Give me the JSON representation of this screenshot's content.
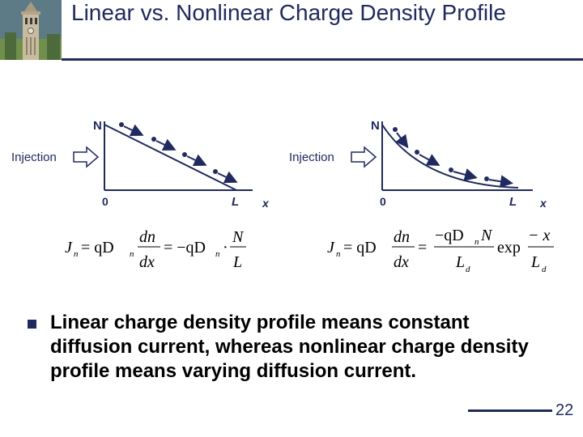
{
  "slide": {
    "title": "Linear vs. Nonlinear Charge Density Profile",
    "bullet": "Linear charge density profile means constant diffusion current, whereas nonlinear charge density profile means varying diffusion current.",
    "page_number": "22",
    "colors": {
      "accent": "#1f2a63"
    }
  },
  "diagram_left": {
    "y_label": "N",
    "x_label": "x",
    "origin_label": "0",
    "end_label": "L",
    "injection_label": "Injection"
  },
  "diagram_right": {
    "y_label": "N",
    "x_label": "x",
    "origin_label": "0",
    "end_label": "L",
    "injection_label": "Injection"
  },
  "equation_left": {
    "lhs": "J",
    "lhs_sub": "n",
    "eq1": "= qD",
    "d_sub": "n",
    "frac1_num": "dn",
    "frac1_den": "dx",
    "eq2": "= −qD",
    "d2_sub": "n",
    "dot": "·",
    "frac2_num": "N",
    "frac2_den": "L"
  },
  "equation_right": {
    "lhs": "J",
    "lhs_sub": "n",
    "eq1": "= qD",
    "frac1_num": "dn",
    "frac1_den": "dx",
    "eq2": "=",
    "frac2_num": "−qD",
    "frac2_num_sub": "n",
    "frac2_num_tail": "N",
    "frac2_den": "L",
    "frac2_den_sub": "d",
    "exp_label": "exp",
    "frac3_num": "− x",
    "frac3_den": "L",
    "frac3_den_sub": "d"
  }
}
